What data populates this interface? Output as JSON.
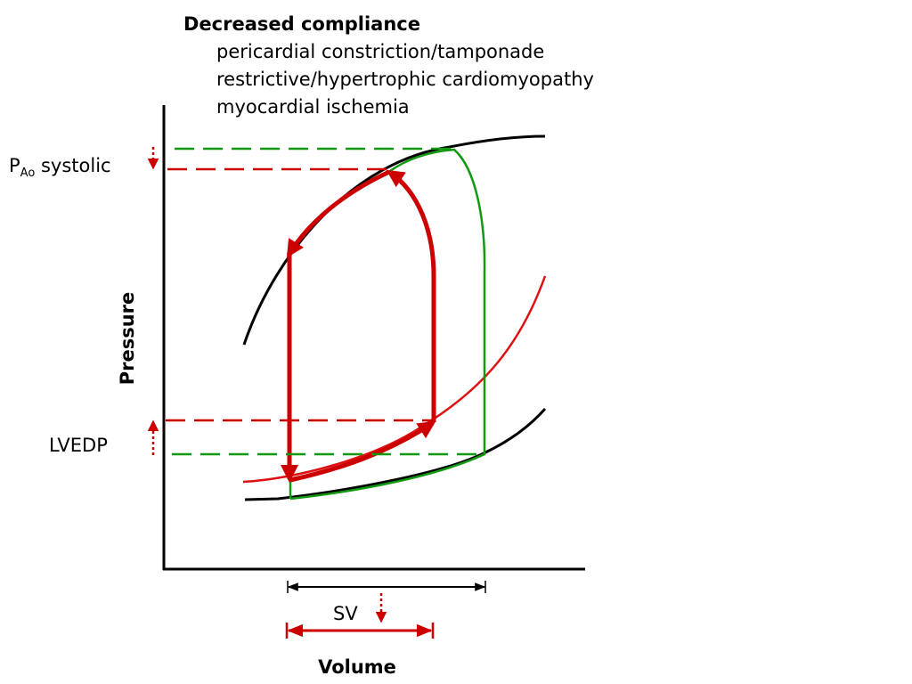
{
  "heading": "Decreased compliance",
  "causes": [
    "pericardial constriction/tamponade",
    "restrictive/hypertrophic cardiomyopathy",
    "myocardial ischemia"
  ],
  "axes": {
    "x_label": "Volume",
    "y_label": "Pressure"
  },
  "labels": {
    "pao_main": "P",
    "pao_sub": "Ao",
    "pao_suffix": " systolic",
    "lvedp": "LVEDP",
    "sv": "SV"
  },
  "colors": {
    "normal": "#119911",
    "decreased": "#cc0000",
    "curve": "#000000"
  }
}
